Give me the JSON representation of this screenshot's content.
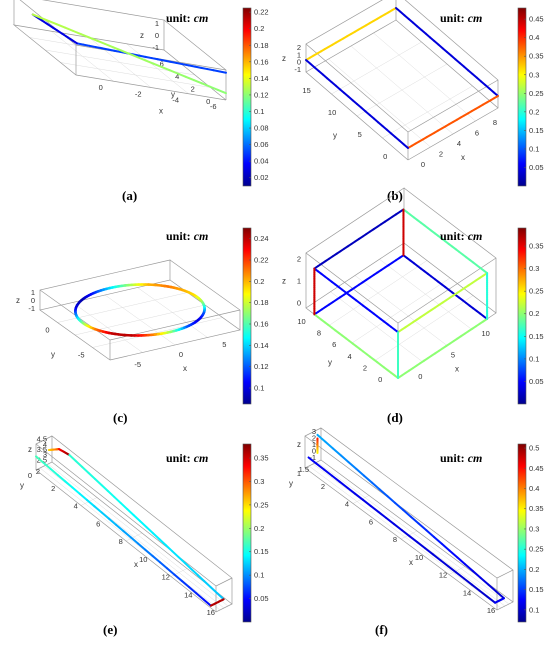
{
  "colors": {
    "colormap": [
      "#00008f",
      "#0000ff",
      "#0080ff",
      "#00ffff",
      "#80ff80",
      "#ffff00",
      "#ff8000",
      "#ff0000",
      "#800000"
    ],
    "axis_box": "#9a9a9a",
    "text": "#000000"
  },
  "chart_data": [
    {
      "label": "(a)",
      "unit_prefix": "unit: ",
      "unit_value": "cm",
      "type": "line3d",
      "x_ticks": [
        "-6",
        "-4",
        "-2",
        "0"
      ],
      "y_ticks": [
        "0",
        "2",
        "4",
        "6"
      ],
      "z_ticks": [
        "-1",
        "0",
        "1"
      ],
      "xlabel": "x",
      "ylabel": "y",
      "zlabel": "z",
      "colorbar_ticks": [
        "0.02",
        "0.04",
        "0.06",
        "0.08",
        "0.1",
        "0.12",
        "0.14",
        "0.16",
        "0.18",
        "0.2",
        "0.22"
      ],
      "colorbar_range": [
        0.01,
        0.225
      ],
      "segments": [
        {
          "from": [
            0,
            0,
            1
          ],
          "to": [
            -7,
            2,
            0.5
          ],
          "values": [
            0.05,
            0.05
          ]
        },
        {
          "from": [
            -7,
            2,
            0.5
          ],
          "to": [
            -7,
            7,
            0
          ],
          "values": [
            0.03,
            0.03
          ]
        },
        {
          "from": [
            -7,
            7,
            0
          ],
          "to": [
            0,
            0,
            -0.5
          ],
          "values": [
            0.13,
            0.12
          ]
        }
      ]
    },
    {
      "label": "(b)",
      "unit_prefix": "unit: ",
      "unit_value": "cm",
      "type": "line3d",
      "x_ticks": [
        "0",
        "2",
        "4",
        "6",
        "8"
      ],
      "y_ticks": [
        "0",
        "5",
        "10",
        "15"
      ],
      "z_ticks": [
        "-1",
        "0",
        "1",
        "2"
      ],
      "xlabel": "x",
      "ylabel": "y",
      "zlabel": "z",
      "colorbar_ticks": [
        "0.05",
        "0.1",
        "0.15",
        "0.2",
        "0.25",
        "0.3",
        "0.35",
        "0.4",
        "0.45"
      ],
      "colorbar_range": [
        0.0,
        0.48
      ],
      "segments": [
        {
          "from": [
            0,
            15,
            0
          ],
          "to": [
            10,
            15,
            0
          ],
          "values": [
            0.32,
            0.32
          ]
        },
        {
          "from": [
            10,
            15,
            0
          ],
          "to": [
            10,
            0,
            0
          ],
          "values": [
            0.04,
            0.04
          ]
        },
        {
          "from": [
            10,
            0,
            0
          ],
          "to": [
            0,
            0,
            0
          ],
          "values": [
            0.38,
            0.38
          ]
        },
        {
          "from": [
            0,
            0,
            0
          ],
          "to": [
            0,
            15,
            0
          ],
          "values": [
            0.04,
            0.04
          ]
        }
      ]
    },
    {
      "label": "(c)",
      "unit_prefix": "unit: ",
      "unit_value": "cm",
      "type": "circle3d",
      "x_ticks": [
        "-5",
        "0",
        "5"
      ],
      "y_ticks": [
        "-5",
        "0"
      ],
      "z_ticks": [
        "-1",
        "0",
        "1"
      ],
      "xlabel": "x",
      "ylabel": "y",
      "zlabel": "z",
      "colorbar_ticks": [
        "0.1",
        "0.12",
        "0.14",
        "0.16",
        "0.18",
        "0.2",
        "0.22",
        "0.24"
      ],
      "colorbar_range": [
        0.085,
        0.25
      ],
      "radius": 7,
      "ring_values": [
        0.19,
        0.2,
        0.21,
        0.2,
        0.17,
        0.14,
        0.11,
        0.09,
        0.1,
        0.13,
        0.17,
        0.21,
        0.24,
        0.24,
        0.21,
        0.17,
        0.12,
        0.1,
        0.12,
        0.16,
        0.19
      ]
    },
    {
      "label": "(d)",
      "unit_prefix": "unit: ",
      "unit_value": "cm",
      "type": "line3d",
      "x_ticks": [
        "0",
        "5",
        "10"
      ],
      "y_ticks": [
        "0",
        "2",
        "4",
        "6",
        "8",
        "10"
      ],
      "z_ticks": [
        "0",
        "1",
        "2"
      ],
      "xlabel": "x",
      "ylabel": "y",
      "zlabel": "z",
      "colorbar_ticks": [
        "0.05",
        "0.1",
        "0.15",
        "0.2",
        "0.25",
        "0.3",
        "0.35"
      ],
      "colorbar_range": [
        0.0,
        0.39
      ],
      "segments": [
        {
          "from": [
            0,
            10,
            0
          ],
          "to": [
            10,
            10,
            0
          ],
          "values": [
            0.05,
            0.05
          ]
        },
        {
          "from": [
            10,
            10,
            0
          ],
          "to": [
            10,
            0,
            0
          ],
          "values": [
            0.03,
            0.03
          ]
        },
        {
          "from": [
            10,
            0,
            0
          ],
          "to": [
            0,
            0,
            0
          ],
          "values": [
            0.2,
            0.2
          ]
        },
        {
          "from": [
            0,
            0,
            0
          ],
          "to": [
            0,
            10,
            0
          ],
          "values": [
            0.2,
            0.2
          ]
        },
        {
          "from": [
            0,
            10,
            2.5
          ],
          "to": [
            10,
            10,
            2.5
          ],
          "values": [
            0.02,
            0.02
          ]
        },
        {
          "from": [
            10,
            10,
            2.5
          ],
          "to": [
            10,
            0,
            2.5
          ],
          "values": [
            0.18,
            0.18
          ]
        },
        {
          "from": [
            10,
            0,
            2.5
          ],
          "to": [
            0,
            0,
            2.5
          ],
          "values": [
            0.22,
            0.22
          ]
        },
        {
          "from": [
            0,
            0,
            2.5
          ],
          "to": [
            0,
            10,
            2.5
          ],
          "values": [
            0.05,
            0.05
          ]
        },
        {
          "from": [
            0,
            10,
            0
          ],
          "to": [
            0,
            10,
            2.5
          ],
          "values": [
            0.36,
            0.36
          ]
        },
        {
          "from": [
            10,
            10,
            0
          ],
          "to": [
            10,
            10,
            2.5
          ],
          "values": [
            0.36,
            0.36
          ]
        },
        {
          "from": [
            10,
            0,
            0
          ],
          "to": [
            10,
            0,
            2.5
          ],
          "values": [
            0.16,
            0.16
          ]
        },
        {
          "from": [
            0,
            0,
            0
          ],
          "to": [
            0,
            0,
            2.5
          ],
          "values": [
            0.17,
            0.17
          ]
        }
      ]
    },
    {
      "label": "(e)",
      "unit_prefix": "unit: ",
      "unit_value": "cm",
      "type": "line3d",
      "x_ticks": [
        "2",
        "4",
        "6",
        "8",
        "10",
        "12",
        "14",
        "16"
      ],
      "y_ticks": [
        "0",
        "2"
      ],
      "z_ticks": [
        "2.5",
        "3",
        "3.5",
        "4",
        "4.5"
      ],
      "xlabel": "x",
      "ylabel": "y",
      "zlabel": "z",
      "colorbar_ticks": [
        "0.05",
        "0.1",
        "0.15",
        "0.2",
        "0.25",
        "0.3",
        "0.35"
      ],
      "colorbar_range": [
        0.0,
        0.38
      ],
      "segments": [
        {
          "from": [
            0,
            2,
            3.5
          ],
          "to": [
            1,
            2,
            4.3
          ],
          "values": [
            0.25,
            0.3
          ]
        },
        {
          "from": [
            1,
            2,
            4.3
          ],
          "to": [
            2,
            2,
            4.5
          ],
          "values": [
            0.33,
            0.37
          ]
        },
        {
          "from": [
            2,
            2,
            4.5
          ],
          "to": [
            17,
            2,
            2.5
          ],
          "values": [
            0.16,
            0.12
          ]
        },
        {
          "from": [
            0,
            0,
            3.5
          ],
          "to": [
            17,
            0,
            2.5
          ],
          "values": [
            0.17,
            0.05
          ]
        },
        {
          "from": [
            17,
            0,
            2.5
          ],
          "to": [
            17,
            2,
            2.5
          ],
          "values": [
            0.36,
            0.36
          ]
        }
      ]
    },
    {
      "label": "(f)",
      "unit_prefix": "unit: ",
      "unit_value": "cm",
      "type": "line3d",
      "x_ticks": [
        "2",
        "4",
        "6",
        "8",
        "10",
        "12",
        "14",
        "16"
      ],
      "y_ticks": [
        "1",
        "1.5"
      ],
      "z_ticks": [
        "-1",
        "0",
        "1",
        "2",
        "3"
      ],
      "xlabel": "x",
      "ylabel": "y",
      "zlabel": "z",
      "colorbar_ticks": [
        "0.1",
        "0.15",
        "0.2",
        "0.25",
        "0.3",
        "0.35",
        "0.4",
        "0.45",
        "0.5"
      ],
      "colorbar_range": [
        0.07,
        0.51
      ],
      "segments": [
        {
          "from": [
            0,
            1.5,
            2
          ],
          "to": [
            0,
            1.5,
            0
          ],
          "values": [
            0.45,
            0.35
          ]
        },
        {
          "from": [
            0,
            1.5,
            2.5
          ],
          "to": [
            17,
            1.5,
            -1
          ],
          "values": [
            0.2,
            0.1
          ]
        },
        {
          "from": [
            0,
            1,
            0
          ],
          "to": [
            17,
            1,
            -1
          ],
          "values": [
            0.12,
            0.1
          ]
        },
        {
          "from": [
            17,
            1,
            -1
          ],
          "to": [
            17,
            1.5,
            -1
          ],
          "values": [
            0.12,
            0.12
          ]
        }
      ]
    }
  ]
}
